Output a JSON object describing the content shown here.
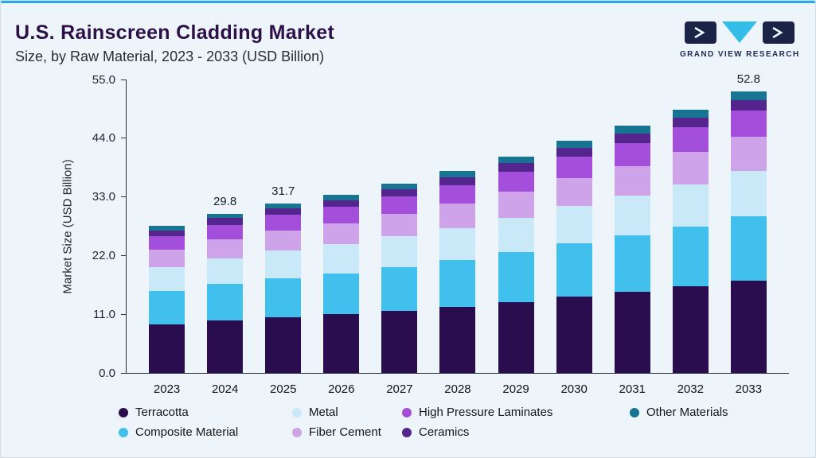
{
  "header": {
    "title": "U.S. Rainscreen Cladding Market",
    "subtitle": "Size, by Raw Material, 2023 - 2033 (USD Billion)",
    "logo_text": "GRAND VIEW RESEARCH"
  },
  "chart_data": {
    "type": "bar",
    "stacked": true,
    "title": "U.S. Rainscreen Cladding Market Size, by Raw Material, 2023 - 2033 (USD Billion)",
    "xlabel": "",
    "ylabel": "Market Size (USD Billion)",
    "ylim": [
      0,
      55
    ],
    "yticks": [
      "0.0",
      "11.0",
      "22.0",
      "33.0",
      "44.0",
      "55.0"
    ],
    "grid": false,
    "legend_position": "bottom",
    "categories": [
      "2023",
      "2024",
      "2025",
      "2026",
      "2027",
      "2028",
      "2029",
      "2030",
      "2031",
      "2032",
      "2033"
    ],
    "series": [
      {
        "name": "Terracotta",
        "color": "#2a0d4e",
        "values": [
          9.1,
          9.8,
          10.5,
          11.0,
          11.7,
          12.4,
          13.3,
          14.3,
          15.2,
          16.2,
          17.3
        ]
      },
      {
        "name": "Composite Material",
        "color": "#41bfed",
        "values": [
          6.3,
          6.9,
          7.3,
          7.7,
          8.2,
          8.7,
          9.3,
          10.0,
          10.6,
          11.3,
          12.1
        ]
      },
      {
        "name": "Metal",
        "color": "#c9e9f9",
        "values": [
          4.4,
          4.8,
          5.1,
          5.4,
          5.7,
          6.1,
          6.5,
          7.0,
          7.4,
          7.9,
          8.5
        ]
      },
      {
        "name": "Fiber Cement",
        "color": "#cfa3ea",
        "values": [
          3.3,
          3.6,
          3.8,
          4.0,
          4.3,
          4.6,
          4.9,
          5.2,
          5.6,
          6.0,
          6.4
        ]
      },
      {
        "name": "High Pressure Laminates",
        "color": "#a34fdb",
        "values": [
          2.5,
          2.7,
          2.9,
          3.0,
          3.2,
          3.4,
          3.7,
          4.0,
          4.3,
          4.6,
          4.9
        ]
      },
      {
        "name": "Ceramics",
        "color": "#55258e",
        "values": [
          1.1,
          1.2,
          1.2,
          1.3,
          1.4,
          1.5,
          1.6,
          1.7,
          1.8,
          1.9,
          2.0
        ]
      },
      {
        "name": "Other Materials",
        "color": "#177492",
        "values": [
          0.8,
          0.8,
          0.9,
          1.0,
          1.0,
          1.1,
          1.2,
          1.3,
          1.4,
          1.5,
          1.6
        ]
      }
    ],
    "totals": [
      27.5,
      29.8,
      31.7,
      33.4,
      35.5,
      37.8,
      40.5,
      43.5,
      46.3,
      49.4,
      52.8
    ],
    "total_labels": {
      "2024": "29.8",
      "2025": "31.7",
      "2033": "52.8"
    },
    "legend_rows": [
      [
        "Terracotta",
        "Metal",
        "High Pressure Laminates",
        "Other Materials"
      ],
      [
        "Composite Material",
        "Fiber Cement",
        "Ceramics"
      ]
    ]
  },
  "colors": {
    "accent_line": "#2ba9e1",
    "background": "#edf5fb",
    "title": "#2d1048",
    "logo_navy": "#1b2447",
    "logo_cyan": "#35bdea"
  }
}
